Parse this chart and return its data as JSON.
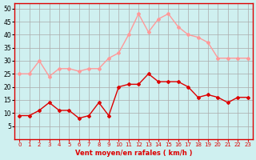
{
  "hours": [
    0,
    1,
    2,
    3,
    4,
    5,
    6,
    7,
    8,
    9,
    10,
    11,
    12,
    13,
    14,
    15,
    16,
    17,
    18,
    19,
    20,
    21,
    22,
    23
  ],
  "wind_avg": [
    9,
    9,
    11,
    14,
    11,
    11,
    8,
    9,
    14,
    9,
    20,
    21,
    21,
    25,
    22,
    22,
    22,
    20,
    16,
    17,
    16,
    14,
    16,
    16
  ],
  "wind_gust": [
    25,
    25,
    30,
    24,
    27,
    27,
    26,
    27,
    27,
    31,
    33,
    40,
    48,
    41,
    46,
    48,
    43,
    40,
    39,
    37,
    31,
    31,
    31,
    31
  ],
  "bg_color": "#cff0f0",
  "grid_color": "#aaaaaa",
  "avg_color": "#dd0000",
  "gust_color": "#ff9999",
  "xlabel": "Vent moyen/en rafales ( km/h )",
  "xlabel_color": "#dd0000",
  "ylabel_color": "#000000",
  "ylim": [
    0,
    52
  ],
  "yticks": [
    5,
    10,
    15,
    20,
    25,
    30,
    35,
    40,
    45,
    50
  ],
  "xticks": [
    0,
    1,
    2,
    3,
    4,
    5,
    6,
    7,
    8,
    9,
    10,
    11,
    12,
    13,
    14,
    15,
    16,
    17,
    18,
    19,
    20,
    21,
    22,
    23
  ]
}
